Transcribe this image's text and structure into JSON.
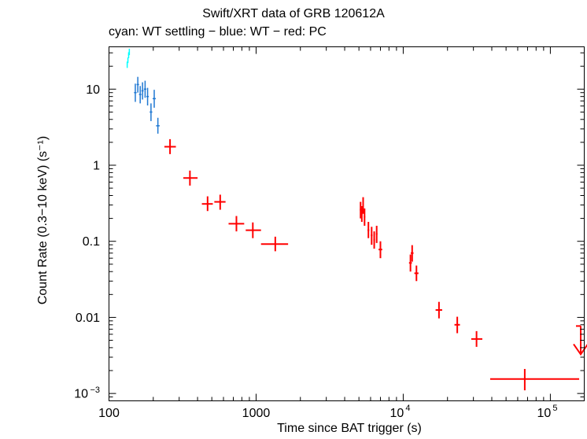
{
  "chart_data": {
    "type": "scatter",
    "title": "Swift/XRT data of GRB 120612A",
    "subtitle": "cyan: WT settling − blue: WT − red: PC",
    "xlabel": "Time since BAT trigger (s)",
    "ylabel": "Count Rate (0.3−10 keV) (s⁻¹)",
    "xscale": "log",
    "yscale": "log",
    "xlim": [
      100,
      170000
    ],
    "ylim": [
      0.0008,
      36
    ],
    "x_ticks": [
      {
        "value": 100,
        "label": "100"
      },
      {
        "value": 1000,
        "label": "1000"
      },
      {
        "value": 10000,
        "base": "10",
        "exp": "4"
      },
      {
        "value": 100000,
        "base": "10",
        "exp": "5"
      }
    ],
    "y_ticks": [
      {
        "value": 0.001,
        "base": "10",
        "exp": "−3"
      },
      {
        "value": 0.01,
        "label": "0.01"
      },
      {
        "value": 0.1,
        "label": "0.1"
      },
      {
        "value": 1,
        "label": "1"
      },
      {
        "value": 10,
        "label": "10"
      }
    ],
    "colors": {
      "wt_settling": "#00ffff",
      "wt": "#1f78d2",
      "pc": "#ff0000",
      "axes": "#000000"
    },
    "series": [
      {
        "name": "WT settling",
        "color_key": "wt_settling",
        "points": [
          {
            "x": 133,
            "xerr": 1,
            "y": 21,
            "yerr_lo": 2,
            "yerr_hi": 2
          },
          {
            "x": 134.5,
            "xerr": 1,
            "y": 24,
            "yerr_lo": 2,
            "yerr_hi": 2
          },
          {
            "x": 136,
            "xerr": 1,
            "y": 28,
            "yerr_lo": 2.5,
            "yerr_hi": 2.5
          },
          {
            "x": 137.5,
            "xerr": 1,
            "y": 31,
            "yerr_lo": 3,
            "yerr_hi": 3
          }
        ]
      },
      {
        "name": "WT",
        "color_key": "wt",
        "points": [
          {
            "x": 151,
            "xerr": 3,
            "y": 9,
            "yerr_lo": 2.2,
            "yerr_hi": 2.8
          },
          {
            "x": 157,
            "xerr": 3,
            "y": 11.5,
            "yerr_lo": 2.5,
            "yerr_hi": 3
          },
          {
            "x": 163,
            "xerr": 3,
            "y": 8.5,
            "yerr_lo": 2,
            "yerr_hi": 2.5
          },
          {
            "x": 169,
            "xerr": 3,
            "y": 9.5,
            "yerr_lo": 2.2,
            "yerr_hi": 2.8
          },
          {
            "x": 176,
            "xerr": 3.5,
            "y": 10,
            "yerr_lo": 2.3,
            "yerr_hi": 2.9
          },
          {
            "x": 183,
            "xerr": 3.5,
            "y": 8,
            "yerr_lo": 1.9,
            "yerr_hi": 2.4
          },
          {
            "x": 193,
            "xerr": 4,
            "y": 5,
            "yerr_lo": 1.2,
            "yerr_hi": 1.5
          },
          {
            "x": 203,
            "xerr": 5,
            "y": 7.5,
            "yerr_lo": 1.8,
            "yerr_hi": 2.3
          },
          {
            "x": 215,
            "xerr": 6,
            "y": 3.3,
            "yerr_lo": 0.7,
            "yerr_hi": 0.9
          }
        ]
      },
      {
        "name": "PC",
        "color_key": "pc",
        "points": [
          {
            "x": 260,
            "xerr_lo": 22,
            "xerr_hi": 25,
            "y": 1.75,
            "yerr_lo": 0.35,
            "yerr_hi": 0.45
          },
          {
            "x": 355,
            "xerr_lo": 35,
            "xerr_hi": 45,
            "y": 0.68,
            "yerr_lo": 0.14,
            "yerr_hi": 0.17
          },
          {
            "x": 468,
            "xerr_lo": 40,
            "xerr_hi": 40,
            "y": 0.31,
            "yerr_lo": 0.06,
            "yerr_hi": 0.08
          },
          {
            "x": 570,
            "xerr_lo": 50,
            "xerr_hi": 50,
            "y": 0.33,
            "yerr_lo": 0.07,
            "yerr_hi": 0.08
          },
          {
            "x": 735,
            "xerr_lo": 85,
            "xerr_hi": 95,
            "y": 0.17,
            "yerr_lo": 0.035,
            "yerr_hi": 0.045
          },
          {
            "x": 950,
            "xerr_lo": 100,
            "xerr_hi": 130,
            "y": 0.14,
            "yerr_lo": 0.03,
            "yerr_hi": 0.037
          },
          {
            "x": 1350,
            "xerr_lo": 270,
            "xerr_hi": 300,
            "y": 0.092,
            "yerr_lo": 0.018,
            "yerr_hi": 0.023
          },
          {
            "x": 5130,
            "xerr": 60,
            "y": 0.26,
            "yerr_lo": 0.06,
            "yerr_hi": 0.07
          },
          {
            "x": 5230,
            "xerr": 60,
            "y": 0.23,
            "yerr_lo": 0.05,
            "yerr_hi": 0.06
          },
          {
            "x": 5340,
            "xerr": 60,
            "y": 0.3,
            "yerr_lo": 0.07,
            "yerr_hi": 0.08
          },
          {
            "x": 5460,
            "xerr": 60,
            "y": 0.21,
            "yerr_lo": 0.05,
            "yerr_hi": 0.06
          },
          {
            "x": 5800,
            "xerr": 80,
            "y": 0.14,
            "yerr_lo": 0.03,
            "yerr_hi": 0.04
          },
          {
            "x": 6100,
            "xerr": 80,
            "y": 0.12,
            "yerr_lo": 0.03,
            "yerr_hi": 0.035
          },
          {
            "x": 6350,
            "xerr": 80,
            "y": 0.105,
            "yerr_lo": 0.025,
            "yerr_hi": 0.03
          },
          {
            "x": 6600,
            "xerr": 80,
            "y": 0.125,
            "yerr_lo": 0.03,
            "yerr_hi": 0.035
          },
          {
            "x": 7000,
            "xerr": 200,
            "y": 0.078,
            "yerr_lo": 0.018,
            "yerr_hi": 0.022
          },
          {
            "x": 11200,
            "xerr": 250,
            "y": 0.052,
            "yerr_lo": 0.012,
            "yerr_hi": 0.015
          },
          {
            "x": 11500,
            "xerr": 250,
            "y": 0.07,
            "yerr_lo": 0.016,
            "yerr_hi": 0.019
          },
          {
            "x": 12300,
            "xerr": 400,
            "y": 0.038,
            "yerr_lo": 0.008,
            "yerr_hi": 0.01
          },
          {
            "x": 17500,
            "xerr": 900,
            "y": 0.0125,
            "yerr_lo": 0.0028,
            "yerr_hi": 0.0035
          },
          {
            "x": 23300,
            "xerr": 1000,
            "y": 0.008,
            "yerr_lo": 0.0018,
            "yerr_hi": 0.0022
          },
          {
            "x": 31500,
            "xerr_lo": 2500,
            "xerr_hi": 3000,
            "y": 0.0052,
            "yerr_lo": 0.0011,
            "yerr_hi": 0.0014
          },
          {
            "x": 67000,
            "xerr_lo": 28000,
            "xerr_hi": 90000,
            "y": 0.00155,
            "yerr_lo": 0.00045,
            "yerr_hi": 0.00055
          }
        ]
      },
      {
        "name": "PC upper limit",
        "color_key": "pc",
        "upper_limits": [
          {
            "x": 155000,
            "y": 0.0077
          }
        ]
      }
    ]
  }
}
